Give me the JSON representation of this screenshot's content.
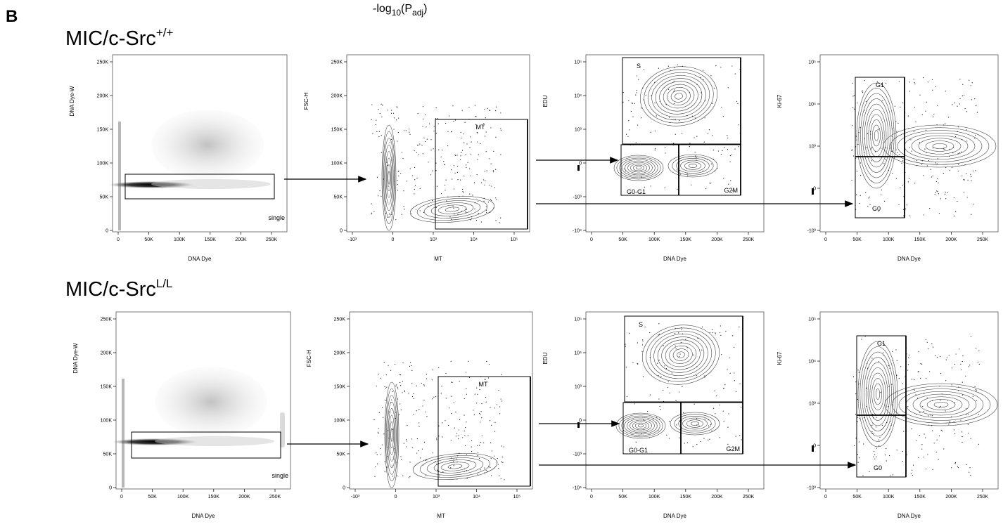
{
  "header": {
    "panel_letter": "B",
    "top_label_main": "-log",
    "top_label_sub": "10",
    "top_label_paren_open": "(P",
    "top_label_sub2": "adj",
    "top_label_paren_close": ")"
  },
  "rows": [
    {
      "title_main": "MIC/c-Src",
      "title_sup": "+/+",
      "panels": [
        {
          "type": "density",
          "xlabel": "DNA Dye",
          "ylabel": "DNA Dye-W",
          "xticks": [
            "0",
            "50K",
            "100K",
            "150K",
            "200K",
            "250K"
          ],
          "yticks": [
            "0",
            "50K",
            "100K",
            "150K",
            "200K",
            "250K"
          ],
          "gates": [
            {
              "name": "single",
              "x": [
                10000,
                250000
              ],
              "y": [
                48000,
                85000
              ]
            }
          ]
        },
        {
          "type": "contour",
          "xlabel": "MT",
          "ylabel": "FSC-H",
          "xticks": [
            "-10³",
            "0",
            "10³",
            "10⁴",
            "10⁵"
          ],
          "yticks": [
            "0",
            "50K",
            "100K",
            "150K",
            "200K",
            "250K"
          ],
          "gates": [
            {
              "name": "MT"
            }
          ]
        },
        {
          "type": "contour",
          "xlabel": "DNA Dye",
          "ylabel": "EDU",
          "xticks": [
            "0",
            "50K",
            "100K",
            "150K",
            "200K",
            "250K"
          ],
          "yticks": [
            "-10⁴",
            "-10³",
            "0",
            "10³",
            "10⁴",
            "10⁵"
          ],
          "gates": [
            {
              "name": "S"
            },
            {
              "name": "G0-G1"
            },
            {
              "name": "G2M"
            }
          ]
        },
        {
          "type": "contour",
          "xlabel": "DNA Dye",
          "ylabel": "Ki-67",
          "xticks": [
            "0",
            "50K",
            "100K",
            "150K",
            "200K",
            "250K"
          ],
          "yticks": [
            "-10³",
            "0",
            "10³",
            "10⁴",
            "10⁵"
          ],
          "gates": [
            {
              "name": "G1"
            },
            {
              "name": "G0"
            }
          ]
        }
      ]
    },
    {
      "title_main": "MIC/c-Src",
      "title_sup": "L/L",
      "panels": [
        {
          "type": "density",
          "xlabel": "DNA Dye",
          "ylabel": "DNA Dye-W",
          "xticks": [
            "0",
            "50K",
            "100K",
            "150K",
            "200K",
            "250K"
          ],
          "yticks": [
            "0",
            "50K",
            "100K",
            "150K",
            "200K",
            "250K"
          ],
          "gates": [
            {
              "name": "single",
              "x": [
                15000,
                250000
              ],
              "y": [
                48000,
                87000
              ]
            }
          ]
        },
        {
          "type": "contour",
          "xlabel": "MT",
          "ylabel": "FSC-H",
          "xticks": [
            "-10³",
            "0",
            "10³",
            "10⁴",
            "10⁵"
          ],
          "yticks": [
            "0",
            "50K",
            "100K",
            "150K",
            "200K",
            "250K"
          ],
          "gates": [
            {
              "name": "MT"
            }
          ]
        },
        {
          "type": "contour",
          "xlabel": "DNA Dye",
          "ylabel": "EDU",
          "xticks": [
            "0",
            "50K",
            "100K",
            "150K",
            "200K",
            "250K"
          ],
          "yticks": [
            "-10⁴",
            "-10³",
            "0",
            "10³",
            "10⁴",
            "10⁵"
          ],
          "gates": [
            {
              "name": "S"
            },
            {
              "name": "G0-G1"
            },
            {
              "name": "G2M"
            }
          ]
        },
        {
          "type": "contour",
          "xlabel": "DNA Dye",
          "ylabel": "Ki-67",
          "xticks": [
            "0",
            "50K",
            "100K",
            "150K",
            "200K",
            "250K"
          ],
          "yticks": [
            "-10³",
            "0",
            "10³",
            "10⁴",
            "10⁵"
          ],
          "gates": [
            {
              "name": "G1"
            },
            {
              "name": "G0"
            }
          ]
        }
      ]
    }
  ],
  "chart_data": [
    {
      "type": "heatmap",
      "xlabel": "DNA Dye",
      "ylabel": "DNA Dye-W",
      "xlim": [
        0,
        260000
      ],
      "ylim": [
        0,
        260000
      ],
      "gate": "single"
    },
    {
      "type": "scatter",
      "xlabel": "MT",
      "ylabel": "FSC-H",
      "ylim": [
        0,
        260000
      ],
      "gate": "MT"
    },
    {
      "type": "scatter",
      "xlabel": "DNA Dye",
      "ylabel": "EDU",
      "xlim": [
        0,
        260000
      ],
      "gates": [
        "S",
        "G0-G1",
        "G2M"
      ]
    },
    {
      "type": "scatter",
      "xlabel": "DNA Dye",
      "ylabel": "Ki-67",
      "xlim": [
        0,
        260000
      ],
      "gates": [
        "G1",
        "G0"
      ]
    }
  ]
}
